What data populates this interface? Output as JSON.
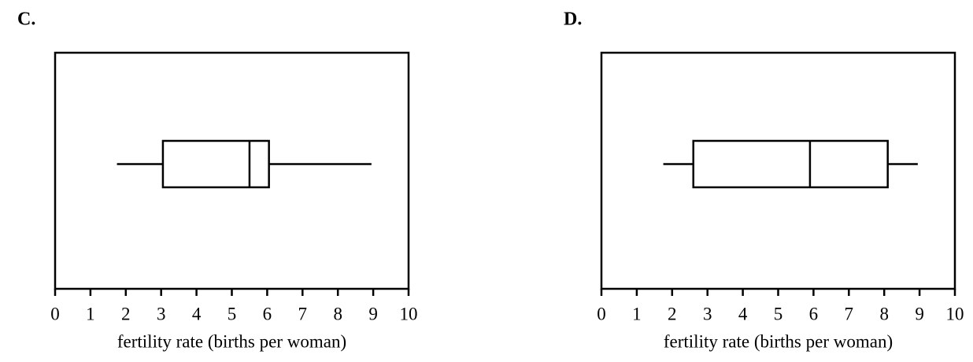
{
  "chart_data": [
    {
      "type": "box",
      "title": "C.",
      "x_label": "fertility rate (births per woman)",
      "xlim": [
        0,
        10
      ],
      "xticks": [
        0,
        1,
        2,
        3,
        4,
        5,
        6,
        7,
        8,
        9,
        10
      ],
      "color": "#000000",
      "box": {
        "min": 1.75,
        "q1": 3.05,
        "median": 5.5,
        "q3": 6.05,
        "max": 8.95
      }
    },
    {
      "type": "box",
      "title": "D.",
      "x_label": "fertility rate (births per woman)",
      "xlim": [
        0,
        10
      ],
      "xticks": [
        0,
        1,
        2,
        3,
        4,
        5,
        6,
        7,
        8,
        9,
        10
      ],
      "color": "#000000",
      "box": {
        "min": 1.75,
        "q1": 2.6,
        "median": 5.9,
        "q3": 8.1,
        "max": 8.95
      }
    }
  ]
}
